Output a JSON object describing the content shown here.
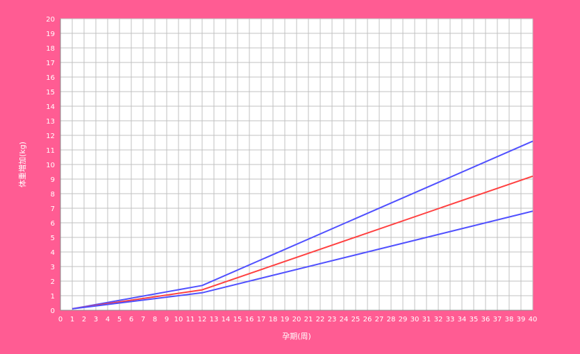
{
  "chart_data": {
    "type": "line",
    "xlabel": "孕期(周)",
    "ylabel": "体重増加(kg)",
    "xlim": [
      0,
      40
    ],
    "ylim": [
      0,
      20
    ],
    "x_ticks": [
      "0",
      "1",
      "2",
      "3",
      "4",
      "5",
      "6",
      "7",
      "8",
      "9",
      "10",
      "11",
      "12",
      "13",
      "14",
      "15",
      "16",
      "17",
      "18",
      "19",
      "20",
      "21",
      "22",
      "23",
      "24",
      "25",
      "26",
      "27",
      "28",
      "29",
      "30",
      "31",
      "32",
      "33",
      "34",
      "35",
      "36",
      "37",
      "38",
      "39",
      "40"
    ],
    "y_ticks": [
      "0",
      "1",
      "2",
      "3",
      "4",
      "5",
      "6",
      "7",
      "8",
      "9",
      "10",
      "11",
      "12",
      "13",
      "14",
      "15",
      "16",
      "17",
      "18",
      "19",
      "20"
    ],
    "grid": true,
    "series": [
      {
        "color": "#5050FF",
        "x": [
          1,
          12,
          40
        ],
        "y": [
          0.1,
          1.7,
          11.6
        ]
      },
      {
        "color": "#FF4040",
        "x": [
          1,
          12,
          40
        ],
        "y": [
          0.1,
          1.4,
          9.2
        ]
      },
      {
        "color": "#5050FF",
        "x": [
          1,
          12,
          40
        ],
        "y": [
          0.1,
          1.2,
          6.8
        ]
      }
    ]
  },
  "colors": {
    "background": "#FF5C93",
    "plot_area": "#FFFFFF",
    "grid": "#C0C0C0"
  }
}
